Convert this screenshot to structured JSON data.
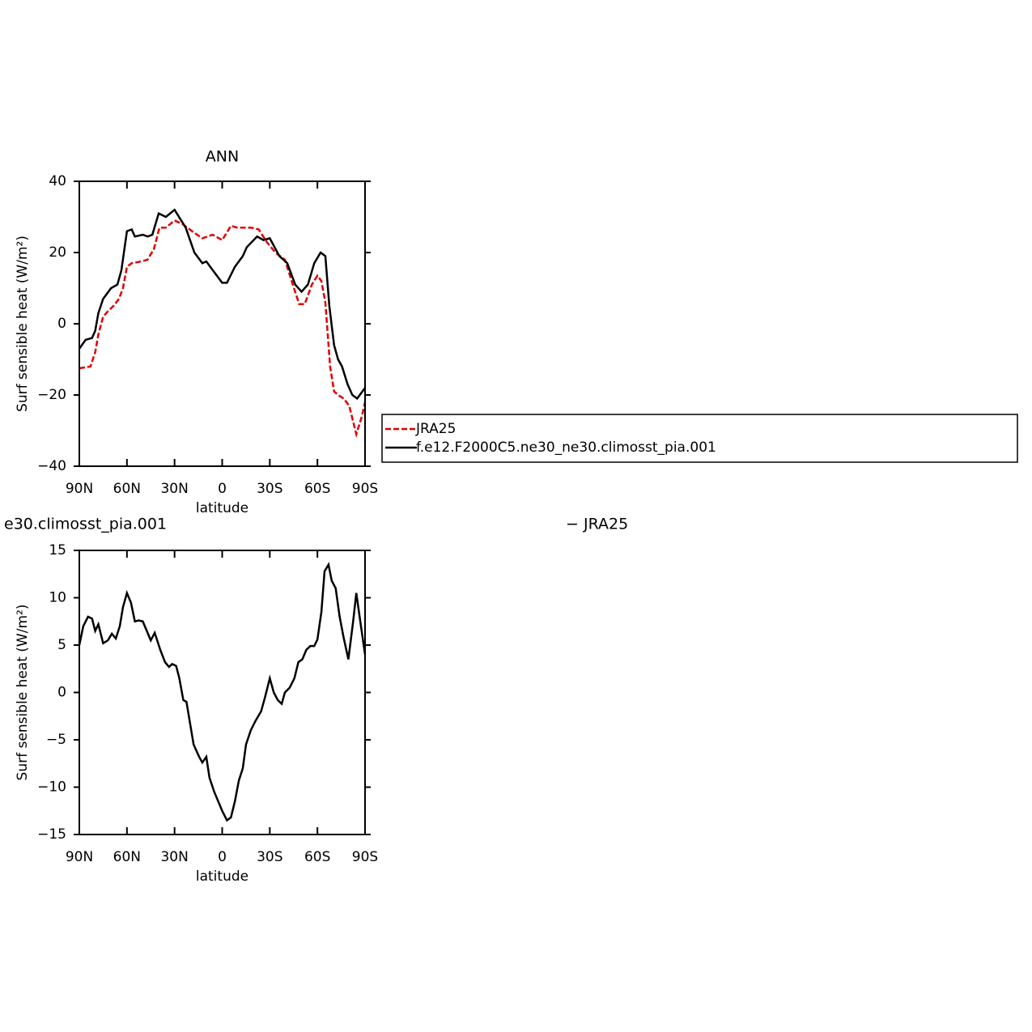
{
  "chart_data": [
    {
      "type": "line",
      "title": "ANN",
      "xlabel": "latitude",
      "ylabel": "Surf sensible heat (W/m²)",
      "xlim": [
        90,
        -90
      ],
      "ylim": [
        -40,
        40
      ],
      "xticks": [
        {
          "value": 90,
          "label": "90N"
        },
        {
          "value": 60,
          "label": "60N"
        },
        {
          "value": 30,
          "label": "30N"
        },
        0,
        {
          "value": -30,
          "label": "30S"
        },
        {
          "value": -60,
          "label": "60S"
        },
        {
          "value": -90,
          "label": "90S"
        }
      ],
      "yticks": [
        {
          "value": -40,
          "label": "−40"
        },
        {
          "value": -20,
          "label": "−20"
        },
        0,
        20,
        40
      ],
      "series": [
        {
          "name": "JRA25",
          "color": "#e00000",
          "style": "dashed",
          "x": [
            90,
            83,
            80,
            78,
            75,
            72,
            68.5,
            65,
            62.5,
            60,
            57,
            51,
            47,
            43,
            39.5,
            35.5,
            30,
            25,
            19,
            12.5,
            6,
            0,
            -5.5,
            -9.5,
            -18,
            -23,
            -28,
            -33.5,
            -39.5,
            -44.5,
            -48.5,
            -52,
            -56.5,
            -60,
            -62.5,
            -65,
            -68,
            -70.5,
            -73,
            -76.5,
            -80,
            -84.5,
            -88,
            -90
          ],
          "values": [
            -12.5,
            -12,
            -8,
            -3,
            2,
            3.5,
            5,
            7,
            10,
            16,
            17,
            17.5,
            18,
            21,
            27,
            27,
            29,
            28,
            26,
            24,
            25,
            23.5,
            27.5,
            27,
            27,
            26.5,
            23,
            20,
            18,
            11,
            5.5,
            5.5,
            11,
            13.5,
            12,
            6,
            -12,
            -19,
            -20,
            -21,
            -23,
            -31,
            -26,
            -22
          ]
        },
        {
          "name": "f.e12.F2000C5.ne30_ne30.climosst_pia.001",
          "color": "#000000",
          "style": "solid",
          "x": [
            90,
            86,
            82,
            80,
            78,
            75,
            70,
            66,
            63.5,
            60,
            57,
            55,
            50,
            47,
            44,
            40,
            35.5,
            30,
            23,
            17.5,
            12.5,
            10,
            5,
            0,
            -3,
            -8,
            -13,
            -15.5,
            -22,
            -26,
            -30,
            -36,
            -41,
            -46,
            -50,
            -54,
            -58,
            -62,
            -65,
            -67.5,
            -70.5,
            -73,
            -75.5,
            -79,
            -82,
            -85,
            -90
          ],
          "values": [
            -7,
            -4.5,
            -4,
            -2,
            3,
            7,
            10,
            11,
            15,
            26,
            26.5,
            24.5,
            25,
            24.5,
            25,
            31,
            30,
            32,
            27,
            20,
            17,
            17.5,
            14.5,
            11.5,
            11.5,
            16,
            19,
            21.5,
            24.5,
            23.5,
            24,
            19,
            17,
            11,
            9,
            11,
            17,
            20,
            19,
            5,
            -6,
            -10,
            -12,
            -17,
            -20,
            -21,
            -18
          ]
        }
      ]
    },
    {
      "type": "line",
      "title_left": "e30.climosst_pia.001",
      "title_right": "− JRA25",
      "xlabel": "latitude",
      "ylabel": "Surf sensible heat (W/m²)",
      "xlim": [
        90,
        -90
      ],
      "ylim": [
        -15,
        15
      ],
      "xticks": [
        {
          "value": 90,
          "label": "90N"
        },
        {
          "value": 60,
          "label": "60N"
        },
        {
          "value": 30,
          "label": "30N"
        },
        0,
        {
          "value": -30,
          "label": "30S"
        },
        {
          "value": -60,
          "label": "60S"
        },
        {
          "value": -90,
          "label": "90S"
        }
      ],
      "yticks": [
        {
          "value": -15,
          "label": "−15"
        },
        {
          "value": -10,
          "label": "−10"
        },
        {
          "value": -5,
          "label": "−5"
        },
        0,
        5,
        10,
        15
      ],
      "series": [
        {
          "color": "#000000",
          "style": "solid",
          "x": [
            90,
            87.5,
            84.5,
            82,
            80,
            78,
            75,
            72,
            69.5,
            67,
            64.5,
            62.5,
            60,
            57.5,
            55,
            52.5,
            50,
            45,
            42.5,
            39,
            36,
            33.5,
            31.5,
            29,
            27,
            24.5,
            22.5,
            20,
            18,
            14.5,
            12.5,
            10,
            8,
            5,
            2.5,
            0,
            -3,
            -5.5,
            -8,
            -10.5,
            -13,
            -15,
            -18,
            -21,
            -24.5,
            -27,
            -30,
            -32.5,
            -35,
            -37.5,
            -39.5,
            -42.5,
            -45.5,
            -48,
            -50.5,
            -53,
            -55.5,
            -58,
            -60,
            -62.5,
            -64.5,
            -67,
            -69,
            -71.5,
            -74,
            -76.5,
            -79.5,
            -82.5,
            -84.5,
            -87,
            -90
          ],
          "values": [
            5,
            7,
            8,
            7.8,
            6.5,
            7.2,
            5.2,
            5.5,
            6.2,
            5.7,
            7,
            9,
            10.5,
            9.5,
            7.5,
            7.6,
            7.5,
            5.5,
            6.3,
            4.5,
            3.2,
            2.7,
            3,
            2.8,
            1.5,
            -0.8,
            -1,
            -3.5,
            -5.5,
            -6.8,
            -7.4,
            -6.8,
            -9,
            -10.5,
            -11.5,
            -12.5,
            -13.5,
            -13.2,
            -11.5,
            -9.3,
            -8,
            -5.5,
            -4,
            -3,
            -2,
            -0.5,
            1.5,
            0,
            -0.8,
            -1.2,
            0,
            0.5,
            1.5,
            3.2,
            3.5,
            4.5,
            4.9,
            4.9,
            5.6,
            8.5,
            12.8,
            13.5,
            11.8,
            11,
            8,
            5.8,
            3.5,
            7.5,
            10.5,
            7.5,
            4
          ]
        }
      ]
    }
  ]
}
